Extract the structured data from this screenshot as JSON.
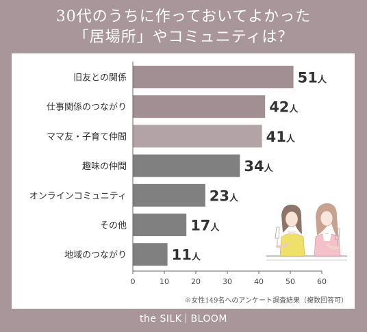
{
  "title": {
    "line1": "30代のうちに作っておいてよかった",
    "line2": "「居場所」やコミュニティは？"
  },
  "chart_data": {
    "type": "bar",
    "orientation": "horizontal",
    "categories": [
      "旧友との関係",
      "仕事関係のつながり",
      "ママ友・子育て仲間",
      "趣味の仲間",
      "オンラインコミュニティ",
      "その他",
      "地域のつながり"
    ],
    "values": [
      51,
      42,
      41,
      34,
      23,
      17,
      11
    ],
    "value_labels": [
      "51",
      "42",
      "41",
      "34",
      "23",
      "17",
      "11"
    ],
    "unit": "人",
    "bar_colors": [
      "#a28f93",
      "#a28f93",
      "#b3a3a7",
      "#808080",
      "#808080",
      "#808080",
      "#808080"
    ],
    "xlim": [
      0,
      60
    ],
    "xticks": [
      "0",
      "10",
      "20",
      "30",
      "40",
      "50",
      "60"
    ],
    "grid": false,
    "xlabel": "",
    "ylabel": ""
  },
  "footnote": "※女性149名へのアンケート調査結果（複数回答可）",
  "brand": {
    "left": "the SILK",
    "right": "BLOOM"
  },
  "colors": {
    "background": "#a8969a",
    "panel": "#ffffff",
    "bar_top": "#a28f93",
    "bar_light": "#b3a3a7",
    "bar_gray": "#808080"
  }
}
